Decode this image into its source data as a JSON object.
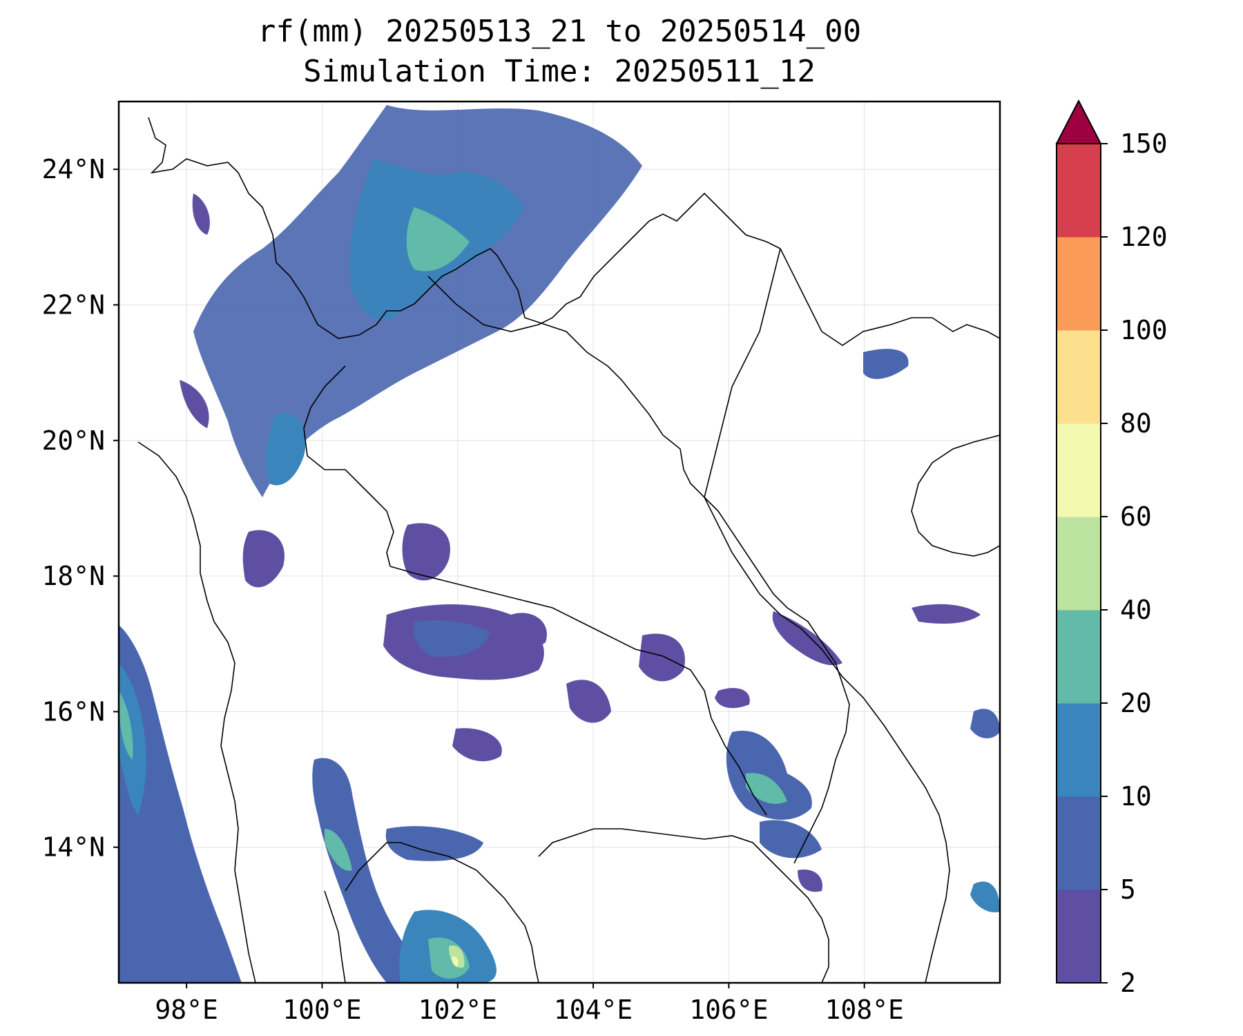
{
  "title": {
    "line1": "rf(mm) 20250513_21 to 20250514_00",
    "line2": "Simulation Time: 20250511_12"
  },
  "map": {
    "lon_range": [
      97,
      110
    ],
    "lat_range": [
      12,
      25
    ],
    "lon_ticks": [
      {
        "value": 98,
        "label": "98°E"
      },
      {
        "value": 100,
        "label": "100°E"
      },
      {
        "value": 102,
        "label": "102°E"
      },
      {
        "value": 104,
        "label": "104°E"
      },
      {
        "value": 106,
        "label": "106°E"
      },
      {
        "value": 108,
        "label": "108°E"
      }
    ],
    "lat_ticks": [
      {
        "value": 24,
        "label": "24°N"
      },
      {
        "value": 22,
        "label": "22°N"
      },
      {
        "value": 20,
        "label": "20°N"
      },
      {
        "value": 18,
        "label": "18°N"
      },
      {
        "value": 16,
        "label": "16°N"
      },
      {
        "value": 14,
        "label": "14°N"
      }
    ],
    "gridlines": true
  },
  "colorbar": {
    "levels": [
      {
        "value": 2,
        "label": "2"
      },
      {
        "value": 5,
        "label": "5"
      },
      {
        "value": 10,
        "label": "10"
      },
      {
        "value": 20,
        "label": "20"
      },
      {
        "value": 40,
        "label": "40"
      },
      {
        "value": 60,
        "label": "60"
      },
      {
        "value": 80,
        "label": "80"
      },
      {
        "value": 100,
        "label": "100"
      },
      {
        "value": 120,
        "label": "120"
      },
      {
        "value": 150,
        "label": "150"
      }
    ],
    "colors": [
      "#5e4fa2",
      "#4a66ae",
      "#3a85bb",
      "#62baa9",
      "#bde3a0",
      "#f3f9ae",
      "#fde08d",
      "#fa9b58",
      "#d6404e"
    ],
    "extend_color": "#9e0142",
    "extend": "max"
  },
  "colors": {
    "border": "#000000",
    "gridline": "#e6e6e6"
  }
}
